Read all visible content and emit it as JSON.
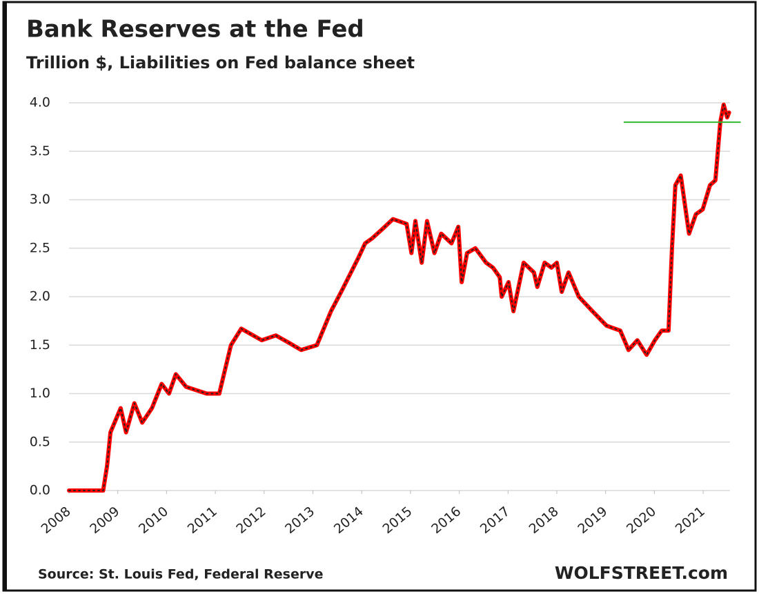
{
  "chart_data": {
    "type": "line",
    "title": "Bank Reserves at the Fed",
    "subtitle": "Trillion $, Liabilities on Fed balance sheet",
    "source": "Source: St. Louis Fed, Federal Reserve",
    "brand": "WOLFSTREET.com",
    "xlim": [
      2008,
      2021.55
    ],
    "xticks": [
      2008,
      2009,
      2010,
      2011,
      2012,
      2013,
      2014,
      2015,
      2016,
      2017,
      2018,
      2019,
      2020,
      2021
    ],
    "ylim": [
      0,
      4.0
    ],
    "yticks": [
      {
        "value": 0,
        "label": "0.0"
      },
      {
        "value": 0.5,
        "label": "0.5"
      },
      {
        "value": 1,
        "label": "1.0"
      },
      {
        "value": 1.5,
        "label": "1.5"
      },
      {
        "value": 2,
        "label": "2.0"
      },
      {
        "value": 2.5,
        "label": "2.5"
      },
      {
        "value": 3,
        "label": "3.0"
      },
      {
        "value": 3.5,
        "label": "3.5"
      },
      {
        "value": 4,
        "label": "4.0"
      }
    ],
    "grid": true,
    "reference_line": {
      "value": 3.8,
      "x": [
        2019.37,
        2021.77
      ],
      "color": "#2db82d"
    },
    "x": [
      2008,
      2008.4,
      2008.7,
      2008.78,
      2008.85,
      2009.06,
      2009.17,
      2009.34,
      2009.5,
      2009.7,
      2009.9,
      2010.05,
      2010.19,
      2010.4,
      2010.82,
      2011.08,
      2011.32,
      2011.53,
      2011.95,
      2012.24,
      2012.52,
      2012.76,
      2013.08,
      2013.37,
      2013.58,
      2013.93,
      2014.07,
      2014.21,
      2014.43,
      2014.64,
      2014.92,
      2015.02,
      2015.1,
      2015.23,
      2015.34,
      2015.49,
      2015.63,
      2015.84,
      2015.98,
      2016.05,
      2016.16,
      2016.33,
      2016.55,
      2016.69,
      2016.83,
      2016.87,
      2017.01,
      2017.11,
      2017.32,
      2017.53,
      2017.6,
      2017.75,
      2017.89,
      2018.0,
      2018.1,
      2018.24,
      2018.45,
      2018.73,
      2019.02,
      2019.3,
      2019.47,
      2019.65,
      2019.84,
      2020.01,
      2020.15,
      2020.29,
      2020.36,
      2020.43,
      2020.54,
      2020.71,
      2020.85,
      2020.99,
      2021.14,
      2021.25,
      2021.35,
      2021.42,
      2021.49,
      2021.53
    ],
    "series": [
      {
        "name": "Bank reserves",
        "color": "#ff0000",
        "values": [
          0,
          0,
          0,
          0.25,
          0.6,
          0.85,
          0.6,
          0.9,
          0.7,
          0.85,
          1.1,
          1.0,
          1.2,
          1.07,
          1.0,
          1.0,
          1.5,
          1.67,
          1.55,
          1.6,
          1.52,
          1.45,
          1.5,
          1.85,
          2.05,
          2.4,
          2.55,
          2.6,
          2.7,
          2.8,
          2.75,
          2.45,
          2.78,
          2.35,
          2.78,
          2.45,
          2.65,
          2.55,
          2.72,
          2.15,
          2.45,
          2.5,
          2.35,
          2.3,
          2.2,
          2.0,
          2.15,
          1.85,
          2.35,
          2.25,
          2.1,
          2.35,
          2.3,
          2.35,
          2.05,
          2.25,
          2.0,
          1.85,
          1.7,
          1.65,
          1.45,
          1.55,
          1.4,
          1.55,
          1.65,
          1.65,
          2.5,
          3.15,
          3.25,
          2.65,
          2.85,
          2.9,
          3.15,
          3.2,
          3.8,
          3.98,
          3.85,
          3.9
        ]
      }
    ]
  }
}
